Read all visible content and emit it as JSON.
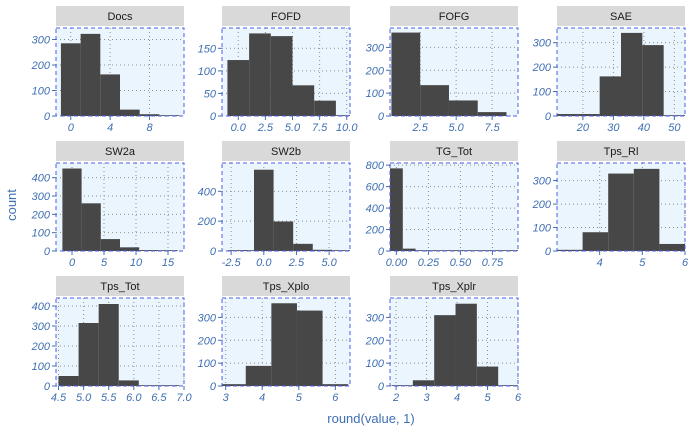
{
  "figure": {
    "xlabel": "round(value, 1)",
    "ylabel": "count"
  },
  "colors": {
    "strip": "#d9d9d9",
    "panel_bg": "#eaf5fd",
    "border": "#4c5ee8",
    "grid": "#8f8f8f",
    "bar": "#474747",
    "tick_text": "#3f6fb3",
    "axis_title": "#3f6fb3",
    "strip_text": "#1a1a1a"
  },
  "chart_data": [
    {
      "type": "bar",
      "title": "Docs",
      "x": [
        0,
        2,
        4,
        6,
        8,
        10
      ],
      "values": [
        285,
        322,
        163,
        25,
        7,
        0
      ],
      "bin_width": 2,
      "xlim": [
        -1.5,
        11.5
      ],
      "ylim": [
        0,
        345
      ],
      "xticks": [
        0,
        4,
        8
      ],
      "xtick_labels": [
        "0",
        "4",
        "8"
      ],
      "yticks": [
        0,
        100,
        200,
        300
      ],
      "ytick_labels": [
        "0",
        "100",
        "200",
        "300"
      ],
      "grid": true
    },
    {
      "type": "bar",
      "title": "FOFD",
      "x": [
        0,
        2,
        4,
        6,
        8,
        10
      ],
      "values": [
        124,
        183,
        177,
        68,
        34,
        0
      ],
      "bin_width": 2,
      "xlim": [
        -1.5,
        10.3
      ],
      "ylim": [
        0,
        195
      ],
      "xticks": [
        0,
        2.5,
        5,
        7.5,
        10
      ],
      "xtick_labels": [
        "0.0",
        "2.5",
        "5.0",
        "7.5",
        "10.0"
      ],
      "yticks": [
        0,
        50,
        100,
        150
      ],
      "ytick_labels": [
        "0",
        "50",
        "100",
        "150"
      ],
      "grid": true
    },
    {
      "type": "bar",
      "title": "FOFG",
      "x": [
        1.5,
        3.5,
        5.5,
        7.5
      ],
      "values": [
        365,
        135,
        68,
        17
      ],
      "bin_width": 2,
      "xlim": [
        0.4,
        9.3
      ],
      "ylim": [
        0,
        385
      ],
      "xticks": [
        2.5,
        5,
        7.5
      ],
      "xtick_labels": [
        "2.5",
        "5.0",
        "7.5"
      ],
      "yticks": [
        0,
        100,
        200,
        300
      ],
      "ytick_labels": [
        "0",
        "100",
        "200",
        "300"
      ],
      "grid": true
    },
    {
      "type": "bar",
      "title": "SAE",
      "x": [
        15,
        22,
        29,
        36,
        43,
        50
      ],
      "values": [
        8,
        8,
        162,
        340,
        290,
        0
      ],
      "bin_width": 7,
      "xlim": [
        11.5,
        53.5
      ],
      "ylim": [
        0,
        360
      ],
      "xticks": [
        20,
        30,
        40,
        50
      ],
      "xtick_labels": [
        "20",
        "30",
        "40",
        "50"
      ],
      "yticks": [
        0,
        100,
        200,
        300
      ],
      "ytick_labels": [
        "0",
        "100",
        "200",
        "300"
      ],
      "grid": true
    },
    {
      "type": "bar",
      "title": "SW2a",
      "x": [
        0,
        3,
        6,
        9,
        12,
        15
      ],
      "values": [
        450,
        260,
        65,
        20,
        5,
        0
      ],
      "bin_width": 3,
      "xlim": [
        -2.5,
        17.5
      ],
      "ylim": [
        0,
        480
      ],
      "xticks": [
        0,
        5,
        10,
        15
      ],
      "xtick_labels": [
        "0",
        "5",
        "10",
        "15"
      ],
      "yticks": [
        0,
        100,
        200,
        300,
        400
      ],
      "ytick_labels": [
        "0",
        "100",
        "200",
        "300",
        "400"
      ],
      "grid": true
    },
    {
      "type": "bar",
      "title": "SW2b",
      "x": [
        -2,
        -1,
        0,
        1.5,
        3,
        4.5,
        6
      ],
      "values": [
        0,
        2,
        545,
        198,
        48,
        8,
        0
      ],
      "bin_width": 1.5,
      "xlim": [
        -3.2,
        6.6
      ],
      "ylim": [
        0,
        590
      ],
      "xticks": [
        -2.5,
        0,
        2.5,
        5
      ],
      "xtick_labels": [
        "-2.5",
        "0.0",
        "2.5",
        "5.0"
      ],
      "yticks": [
        0,
        200,
        400
      ],
      "ytick_labels": [
        "0",
        "200",
        "400"
      ],
      "grid": true
    },
    {
      "type": "bar",
      "title": "TG_Tot",
      "x": [
        0,
        0.1,
        0.2,
        0.3,
        0.4,
        0.5,
        0.6,
        0.7,
        0.8,
        0.9
      ],
      "values": [
        770,
        22,
        5,
        2,
        1,
        1,
        0,
        1,
        0,
        1
      ],
      "bin_width": 0.1,
      "xlim": [
        -0.05,
        0.95
      ],
      "ylim": [
        0,
        820
      ],
      "xticks": [
        0,
        0.25,
        0.5,
        0.75
      ],
      "xtick_labels": [
        "0.00",
        "0.25",
        "0.50",
        "0.75"
      ],
      "yticks": [
        0,
        200,
        400,
        600,
        800
      ],
      "ytick_labels": [
        "0",
        "200",
        "400",
        "600",
        "800"
      ],
      "grid": true
    },
    {
      "type": "bar",
      "title": "Tps_Rl",
      "x": [
        3.3,
        3.9,
        4.5,
        5.1,
        5.7
      ],
      "values": [
        5,
        80,
        330,
        350,
        30
      ],
      "bin_width": 0.6,
      "xlim": [
        3,
        6
      ],
      "ylim": [
        0,
        375
      ],
      "xticks": [
        4,
        5,
        6
      ],
      "xtick_labels": [
        "4",
        "5",
        "6"
      ],
      "yticks": [
        0,
        100,
        200,
        300
      ],
      "ytick_labels": [
        "0",
        "100",
        "200",
        "300"
      ],
      "grid": true
    },
    {
      "type": "bar",
      "title": "Tps_Tot",
      "x": [
        4.7,
        5.1,
        5.5,
        5.9,
        6.3,
        6.7
      ],
      "values": [
        50,
        315,
        410,
        28,
        4,
        0
      ],
      "bin_width": 0.4,
      "xlim": [
        4.45,
        7
      ],
      "ylim": [
        0,
        440
      ],
      "xticks": [
        4.5,
        5,
        5.5,
        6,
        6.5,
        7
      ],
      "xtick_labels": [
        "4.5",
        "5.0",
        "5.5",
        "6.0",
        "6.5",
        "7.0"
      ],
      "yticks": [
        0,
        100,
        200,
        300,
        400
      ],
      "ytick_labels": [
        "0",
        "100",
        "200",
        "300",
        "400"
      ],
      "grid": true
    },
    {
      "type": "bar",
      "title": "Tps_Xplo",
      "x": [
        3.2,
        3.9,
        4.6,
        5.3,
        6
      ],
      "values": [
        8,
        88,
        362,
        330,
        8
      ],
      "bin_width": 0.7,
      "xlim": [
        2.9,
        6.4
      ],
      "ylim": [
        0,
        385
      ],
      "xticks": [
        3,
        4,
        5,
        6
      ],
      "xtick_labels": [
        "3",
        "4",
        "5",
        "6"
      ],
      "yticks": [
        0,
        100,
        200,
        300
      ],
      "ytick_labels": [
        "0",
        "100",
        "200",
        "300"
      ],
      "grid": true
    },
    {
      "type": "bar",
      "title": "Tps_Xplr",
      "x": [
        2.2,
        2.9,
        3.6,
        4.3,
        5,
        5.7
      ],
      "values": [
        2,
        25,
        310,
        360,
        85,
        0
      ],
      "bin_width": 0.7,
      "xlim": [
        1.8,
        6
      ],
      "ylim": [
        0,
        385
      ],
      "xticks": [
        2,
        3,
        4,
        5,
        6
      ],
      "xtick_labels": [
        "2",
        "3",
        "4",
        "5",
        "6"
      ],
      "yticks": [
        0,
        100,
        200,
        300
      ],
      "ytick_labels": [
        "0",
        "100",
        "200",
        "300"
      ],
      "grid": true
    }
  ]
}
